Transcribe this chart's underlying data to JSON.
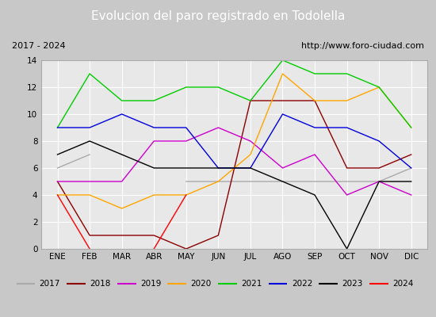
{
  "title": "Evolucion del paro registrado en Todolella",
  "subtitle_left": "2017 - 2024",
  "subtitle_right": "http://www.foro-ciudad.com",
  "months": [
    "ENE",
    "FEB",
    "MAR",
    "ABR",
    "MAY",
    "JUN",
    "JUL",
    "AGO",
    "SEP",
    "OCT",
    "NOV",
    "DIC"
  ],
  "ylim": [
    0,
    14
  ],
  "yticks": [
    0,
    2,
    4,
    6,
    8,
    10,
    12,
    14
  ],
  "series": {
    "2017": {
      "color": "#aaaaaa",
      "data": [
        6,
        7,
        null,
        null,
        5,
        5,
        5,
        5,
        5,
        5,
        5,
        6
      ]
    },
    "2018": {
      "color": "#8b0000",
      "data": [
        5,
        1,
        1,
        1,
        0,
        1,
        11,
        11,
        11,
        6,
        6,
        7
      ]
    },
    "2019": {
      "color": "#cc00cc",
      "data": [
        5,
        5,
        5,
        8,
        8,
        9,
        8,
        6,
        7,
        4,
        5,
        4
      ]
    },
    "2020": {
      "color": "#ffa500",
      "data": [
        4,
        4,
        3,
        4,
        4,
        5,
        7,
        13,
        11,
        11,
        12,
        9
      ]
    },
    "2021": {
      "color": "#00cc00",
      "data": [
        9,
        13,
        11,
        11,
        12,
        12,
        11,
        14,
        13,
        13,
        12,
        9
      ]
    },
    "2022": {
      "color": "#0000dd",
      "data": [
        9,
        9,
        10,
        9,
        9,
        6,
        6,
        10,
        9,
        9,
        8,
        6
      ]
    },
    "2023": {
      "color": "#000000",
      "data": [
        7,
        8,
        7,
        6,
        6,
        6,
        6,
        5,
        4,
        0,
        5,
        5
      ]
    },
    "2024": {
      "color": "#ff0000",
      "data": [
        4,
        0,
        null,
        0,
        4,
        null,
        null,
        null,
        null,
        null,
        null,
        null
      ]
    }
  },
  "fig_bg_color": "#c8c8c8",
  "plot_bg_color": "#e8e8e8",
  "title_bg_color": "#4472c4",
  "title_color": "#ffffff",
  "header_bg_color": "#d0d0d0",
  "grid_color": "#ffffff",
  "title_fontsize": 11,
  "legend_fontsize": 7.5,
  "tick_fontsize": 7.5
}
